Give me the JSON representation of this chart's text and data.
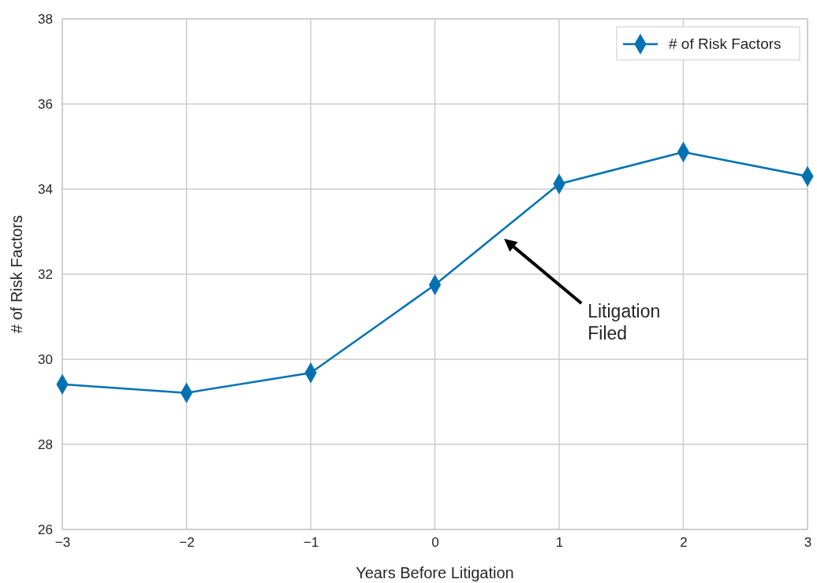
{
  "chart_data": {
    "type": "line",
    "xlabel": "Years Before Litigation",
    "ylabel": "# of Risk Factors",
    "x": [
      -3,
      -2,
      -1,
      0,
      1,
      2,
      3
    ],
    "series": [
      {
        "name": "# of Risk Factors",
        "color": "#0072b2",
        "values": [
          29.41,
          29.21,
          29.68,
          31.75,
          34.12,
          34.87,
          34.3
        ]
      }
    ],
    "xlim": [
      -3,
      3
    ],
    "ylim": [
      26,
      38
    ],
    "xticks": [
      {
        "value": -3,
        "label": "−3"
      },
      {
        "value": -2,
        "label": "−2"
      },
      {
        "value": -1,
        "label": "−1"
      },
      0,
      1,
      2,
      3
    ],
    "yticks": [
      26,
      28,
      30,
      32,
      34,
      36,
      38
    ],
    "grid": true,
    "legend": "top right",
    "marker": "diamond",
    "line_style": "solid",
    "annotations": [
      "Litigation\nFiled"
    ]
  }
}
